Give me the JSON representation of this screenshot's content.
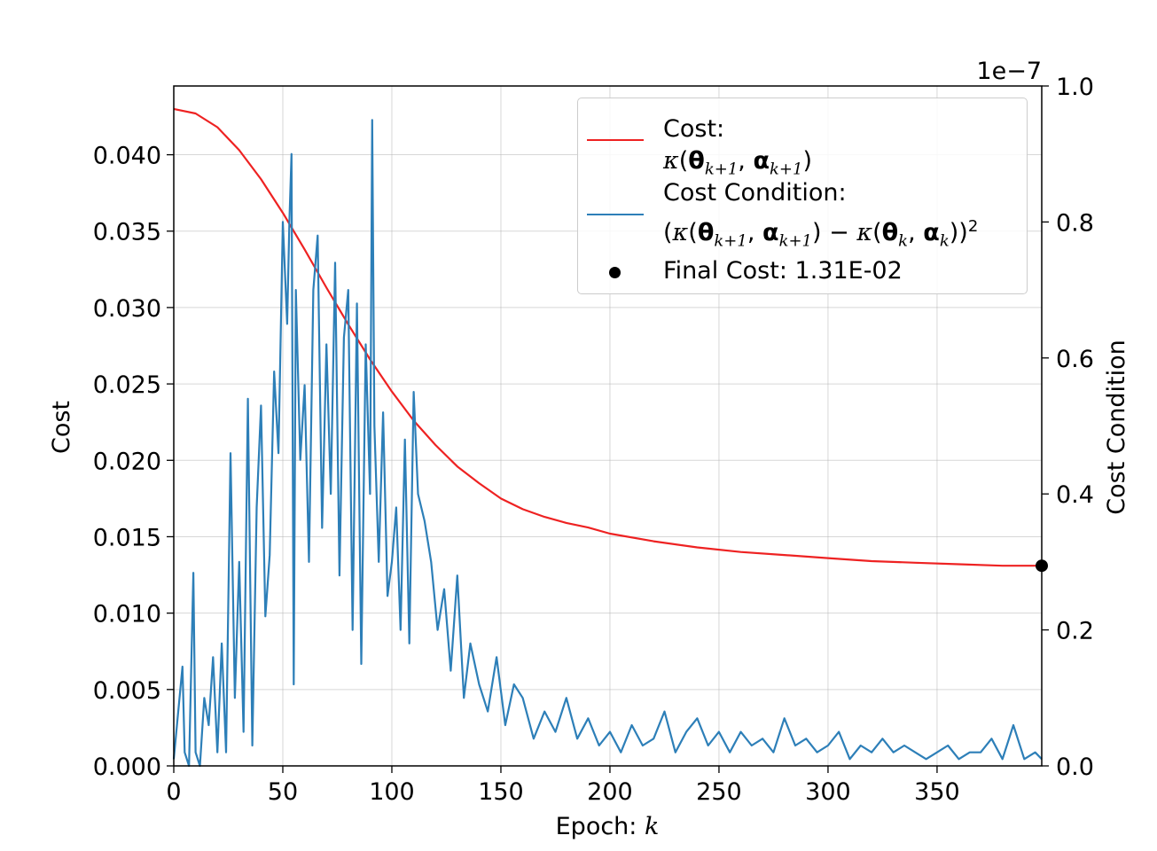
{
  "chart_data": {
    "type": "line",
    "xlabel_text": "Epoch:",
    "xlabel_var": "k",
    "ylabel_left": "Cost",
    "ylabel_right": "Cost Condition",
    "right_axis_multiplier": "1e−7",
    "xlim": [
      0,
      398
    ],
    "ylim_left": [
      0.0,
      0.0445
    ],
    "ylim_right": [
      0.0,
      1.0
    ],
    "x_ticks": [
      "0",
      "50",
      "100",
      "150",
      "200",
      "250",
      "300",
      "350"
    ],
    "y_ticks_left": [
      "0.000",
      "0.005",
      "0.010",
      "0.015",
      "0.020",
      "0.025",
      "0.030",
      "0.035",
      "0.040"
    ],
    "y_ticks_right": [
      "0.0",
      "0.2",
      "0.4",
      "0.6",
      "0.8",
      "1.0"
    ],
    "grid": true,
    "legend_position": "upper right",
    "colors": {
      "cost": "#ee2222",
      "condition": "#2d7fb8",
      "final": "#000000"
    },
    "series": [
      {
        "name": "Cost: κ(θ_{k+1}, α_{k+1})",
        "axis": "left",
        "x": [
          0,
          10,
          20,
          30,
          40,
          50,
          60,
          70,
          80,
          90,
          100,
          110,
          120,
          130,
          140,
          150,
          160,
          170,
          180,
          190,
          200,
          220,
          240,
          260,
          280,
          300,
          320,
          340,
          360,
          380,
          398
        ],
        "values": [
          0.043,
          0.0427,
          0.0418,
          0.0403,
          0.0384,
          0.0362,
          0.0338,
          0.0313,
          0.0289,
          0.0266,
          0.0245,
          0.0226,
          0.021,
          0.0196,
          0.0185,
          0.0175,
          0.0168,
          0.0163,
          0.0159,
          0.0156,
          0.0152,
          0.0147,
          0.0143,
          0.014,
          0.0138,
          0.0136,
          0.0134,
          0.0133,
          0.0132,
          0.0131,
          0.0131
        ]
      },
      {
        "name": "Cost Condition: (κ(θ_{k+1}, α_{k+1}) − κ(θ_k, α_k))^2",
        "axis": "right",
        "x": [
          0,
          4,
          5,
          7,
          9,
          10,
          12,
          14,
          16,
          18,
          20,
          22,
          24,
          26,
          28,
          30,
          32,
          34,
          36,
          38,
          40,
          42,
          44,
          46,
          48,
          50,
          52,
          53,
          54,
          55,
          56,
          58,
          60,
          62,
          64,
          66,
          68,
          70,
          72,
          74,
          76,
          78,
          80,
          82,
          84,
          86,
          88,
          90,
          91,
          92,
          94,
          96,
          98,
          100,
          102,
          104,
          106,
          108,
          110,
          112,
          115,
          118,
          121,
          124,
          127,
          130,
          133,
          136,
          140,
          144,
          148,
          152,
          156,
          160,
          165,
          170,
          175,
          180,
          185,
          190,
          195,
          200,
          205,
          210,
          215,
          220,
          225,
          230,
          235,
          240,
          245,
          250,
          255,
          260,
          265,
          270,
          275,
          280,
          285,
          290,
          295,
          300,
          305,
          310,
          315,
          320,
          325,
          330,
          335,
          340,
          345,
          350,
          355,
          360,
          365,
          370,
          375,
          380,
          385,
          390,
          395,
          398
        ],
        "values": [
          0.01,
          0.146,
          0.02,
          0.0,
          0.284,
          0.02,
          0.0,
          0.1,
          0.06,
          0.16,
          0.02,
          0.18,
          0.02,
          0.46,
          0.1,
          0.3,
          0.05,
          0.54,
          0.03,
          0.38,
          0.53,
          0.22,
          0.31,
          0.58,
          0.46,
          0.8,
          0.65,
          0.8,
          0.9,
          0.12,
          0.7,
          0.45,
          0.56,
          0.3,
          0.7,
          0.78,
          0.35,
          0.62,
          0.4,
          0.74,
          0.28,
          0.63,
          0.7,
          0.2,
          0.68,
          0.15,
          0.62,
          0.4,
          0.95,
          0.5,
          0.3,
          0.52,
          0.25,
          0.3,
          0.38,
          0.2,
          0.48,
          0.18,
          0.55,
          0.4,
          0.36,
          0.3,
          0.2,
          0.26,
          0.14,
          0.28,
          0.1,
          0.18,
          0.12,
          0.08,
          0.16,
          0.06,
          0.12,
          0.1,
          0.04,
          0.08,
          0.05,
          0.1,
          0.04,
          0.07,
          0.03,
          0.05,
          0.02,
          0.06,
          0.03,
          0.04,
          0.08,
          0.02,
          0.05,
          0.07,
          0.03,
          0.05,
          0.02,
          0.05,
          0.03,
          0.04,
          0.02,
          0.07,
          0.03,
          0.04,
          0.02,
          0.03,
          0.05,
          0.01,
          0.03,
          0.02,
          0.04,
          0.02,
          0.03,
          0.02,
          0.01,
          0.02,
          0.03,
          0.01,
          0.02,
          0.02,
          0.04,
          0.01,
          0.06,
          0.01,
          0.02,
          0.01
        ]
      }
    ],
    "final_point": {
      "x": 398,
      "y": 0.0131,
      "label": "Final Cost: 1.31E-02"
    },
    "legend_labels": {
      "cost_title": "Cost:",
      "condition_title": "Cost Condition:",
      "final_label": "Final Cost: 1.31E-02"
    }
  }
}
